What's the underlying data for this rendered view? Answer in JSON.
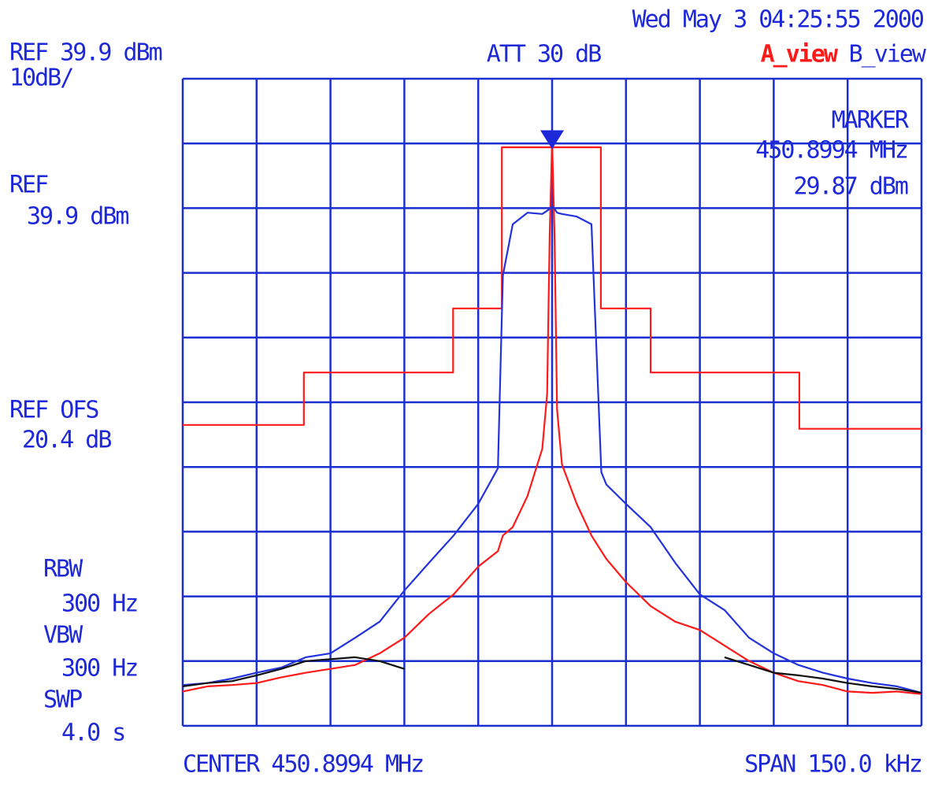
{
  "chart_data": {
    "type": "line",
    "annotations": {
      "date": "Wed May  3 04:25:55 2000",
      "ref_top": "REF 39.9 dBm",
      "scale": "10dB/",
      "att": "ATT 30 dB",
      "ref_label": "REF",
      "ref_value": "39.9 dBm",
      "ofs_label": "REF OFS",
      "ofs_value": "20.4 dB",
      "rbw_label": "RBW",
      "rbw_value": "300 Hz",
      "vbw_label": "VBW",
      "vbw_value": "300 Hz",
      "swp_label": "SWP",
      "swp_value": "4.0 s",
      "center": "CENTER 450.8994 MHz",
      "span": "SPAN 150.0 kHz"
    },
    "marker": {
      "title": "MARKER",
      "x": 450.8994,
      "y": 29.87,
      "x_label": "450.8994 MHz",
      "y_label": "29.87 dBm"
    },
    "xlim": [
      450.8244,
      450.9744
    ],
    "xticks": [
      450.8244,
      450.8394,
      450.8544,
      450.8694,
      450.8844,
      450.8994,
      450.9144,
      450.9294,
      450.9444,
      450.9594,
      450.9744
    ],
    "ylim": [
      -60.1,
      39.9
    ],
    "yticks": [
      -60.1,
      -50.1,
      -40.1,
      -30.1,
      -20.1,
      -10.1,
      -0.1,
      9.9,
      19.9,
      29.9,
      39.9
    ],
    "grid": true,
    "grid_color": "#1a2fd0",
    "x": [
      450.8244,
      450.8294,
      450.8344,
      450.8394,
      450.8444,
      450.8494,
      450.8544,
      450.8594,
      450.8644,
      450.8694,
      450.8744,
      450.8794,
      450.8844,
      450.8884,
      450.8894,
      450.8914,
      450.8944,
      450.8974,
      450.8984,
      450.8989,
      450.8994,
      450.8999,
      450.9004,
      450.9014,
      450.9044,
      450.9074,
      450.9094,
      450.9104,
      450.9144,
      450.9194,
      450.9244,
      450.9294,
      450.9344,
      450.9394,
      450.9444,
      450.9494,
      450.9544,
      450.9594,
      450.9644,
      450.9694,
      450.9744
    ],
    "series": [
      {
        "color": "#ff1a1a",
        "x": [
          450.8244,
          450.849,
          450.849,
          450.8793,
          450.8793,
          450.8892,
          450.8892,
          450.9093,
          450.9093,
          450.9194,
          450.9194,
          450.9496,
          450.9496,
          450.9744
        ],
        "values": [
          -13.6,
          -13.6,
          -5.5,
          -5.5,
          4.4,
          4.4,
          29.3,
          29.3,
          4.4,
          4.4,
          -5.5,
          -5.5,
          -14.2,
          -14.2
        ]
      },
      {
        "name": "A_view",
        "color": "#ff1a1a",
        "values": [
          -54.8,
          -54.0,
          -53.8,
          -53.5,
          -52.6,
          -51.9,
          -51.3,
          -50.7,
          -48.9,
          -46.5,
          -42.8,
          -39.8,
          -35.5,
          -33.1,
          -30.7,
          -29.4,
          -24.6,
          -17.3,
          -8.8,
          15.6,
          30.2,
          15.6,
          -11.2,
          -19.7,
          -25.8,
          -30.7,
          -33.1,
          -34.3,
          -37.9,
          -41.6,
          -44.0,
          -45.3,
          -47.7,
          -50.1,
          -51.9,
          -53.2,
          -53.8,
          -54.8,
          -55.0,
          -54.8,
          -55.2
        ]
      },
      {
        "name": "B_view",
        "color": "#2233dd",
        "values": [
          -53.8,
          -53.5,
          -52.8,
          -51.9,
          -51.1,
          -49.5,
          -48.9,
          -46.5,
          -44.0,
          -39.2,
          -34.9,
          -30.7,
          -25.8,
          -20.3,
          9.5,
          17.4,
          19.2,
          19.0,
          19.5,
          19.8,
          20.2,
          19.8,
          19.2,
          19.0,
          18.6,
          17.4,
          -20.9,
          -22.8,
          -25.8,
          -29.4,
          -34.9,
          -39.8,
          -42.2,
          -46.5,
          -48.9,
          -50.7,
          -51.9,
          -52.8,
          -53.5,
          -54.0,
          -55.0
        ]
      },
      {
        "color": "#111111",
        "values": [
          -54.0,
          -53.5,
          -53.2,
          -52.3,
          -51.3,
          -50.1,
          -49.8,
          -49.5,
          -50.1,
          -51.3,
          null,
          null,
          null,
          null,
          null,
          null,
          null,
          null,
          null,
          null,
          null,
          null,
          null,
          null,
          null,
          null,
          null,
          null,
          null,
          null,
          null,
          null,
          -49.5,
          -50.7,
          -51.9,
          -52.3,
          -52.8,
          -53.5,
          -54.0,
          -54.4,
          -55.0
        ]
      }
    ]
  }
}
